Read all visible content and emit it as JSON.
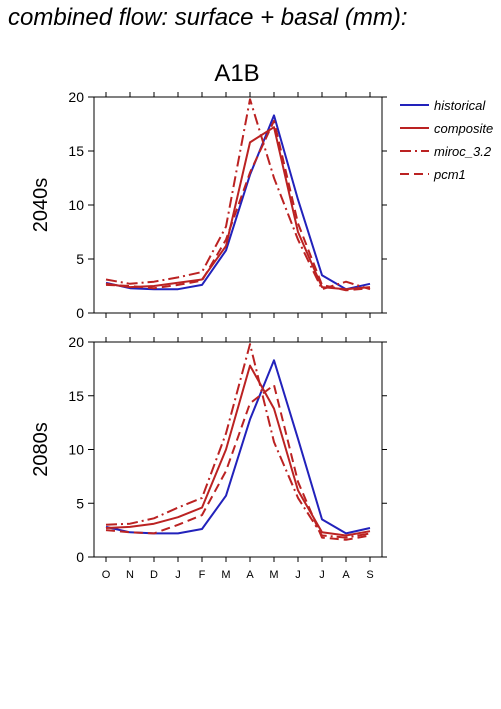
{
  "page_title": "combined flow: surface + basal (mm):",
  "chart_data": {
    "type": "line",
    "title": "A1B",
    "categories": [
      "O",
      "N",
      "D",
      "J",
      "F",
      "M",
      "A",
      "M",
      "J",
      "J",
      "A",
      "S"
    ],
    "ylim": [
      0,
      20
    ],
    "yticks": [
      0,
      5,
      10,
      15,
      20
    ],
    "grid": false,
    "legend_position": "top-right",
    "legend": [
      {
        "name": "historical",
        "color": "#2222bb",
        "dash": "solid"
      },
      {
        "name": "composite",
        "color": "#bb2222",
        "dash": "solid"
      },
      {
        "name": "miroc_3.2",
        "color": "#bb2222",
        "dash": "dashdot"
      },
      {
        "name": "pcm1",
        "color": "#bb2222",
        "dash": "dash"
      }
    ],
    "panels": [
      {
        "ylabel": "2040s",
        "series": [
          {
            "name": "historical",
            "color": "#2222bb",
            "dash": "solid",
            "values": [
              2.8,
              2.3,
              2.2,
              2.2,
              2.6,
              5.8,
              12.8,
              18.3,
              10.5,
              3.5,
              2.2,
              2.7
            ]
          },
          {
            "name": "composite",
            "color": "#bb2222",
            "dash": "solid",
            "values": [
              2.7,
              2.4,
              2.5,
              2.8,
              3.1,
              6.2,
              15.8,
              17.2,
              7.5,
              2.4,
              2.2,
              2.4
            ]
          },
          {
            "name": "miroc_3.2",
            "color": "#bb2222",
            "dash": "dashdot",
            "values": [
              3.1,
              2.7,
              2.9,
              3.3,
              3.8,
              8.0,
              19.8,
              12.5,
              6.8,
              2.2,
              2.9,
              2.2
            ]
          },
          {
            "name": "pcm1",
            "color": "#bb2222",
            "dash": "dash",
            "values": [
              2.6,
              2.5,
              2.3,
              2.6,
              3.0,
              6.8,
              13.0,
              17.8,
              8.3,
              2.6,
              2.1,
              2.3
            ]
          }
        ]
      },
      {
        "ylabel": "2080s",
        "series": [
          {
            "name": "historical",
            "color": "#2222bb",
            "dash": "solid",
            "values": [
              2.8,
              2.3,
              2.2,
              2.2,
              2.6,
              5.7,
              12.8,
              18.3,
              11.0,
              3.5,
              2.2,
              2.7
            ]
          },
          {
            "name": "composite",
            "color": "#bb2222",
            "dash": "solid",
            "values": [
              2.7,
              2.8,
              3.1,
              3.7,
              4.6,
              10.0,
              17.8,
              13.8,
              6.2,
              2.3,
              2.0,
              2.4
            ]
          },
          {
            "name": "miroc_3.2",
            "color": "#bb2222",
            "dash": "dashdot",
            "values": [
              3.0,
              3.1,
              3.6,
              4.6,
              5.5,
              11.5,
              19.8,
              10.7,
              5.5,
              2.0,
              1.8,
              2.2
            ]
          },
          {
            "name": "pcm1",
            "color": "#bb2222",
            "dash": "dash",
            "values": [
              2.5,
              2.3,
              2.2,
              3.0,
              3.9,
              8.0,
              14.3,
              16.0,
              7.0,
              1.8,
              1.6,
              2.0
            ]
          }
        ]
      }
    ]
  }
}
